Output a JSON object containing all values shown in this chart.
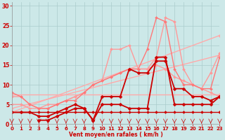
{
  "xlabel": "Vent moyen/en rafales ( km/h )",
  "background_color": "#cce8e8",
  "grid_color": "#aacccc",
  "xlim": [
    0,
    23
  ],
  "ylim": [
    0,
    31
  ],
  "series": [
    {
      "x": [
        0,
        1,
        2,
        3,
        4,
        5,
        6,
        7,
        8,
        9,
        10,
        11,
        12,
        13,
        14,
        15,
        16,
        17,
        18,
        19,
        20,
        21,
        22,
        23
      ],
      "y": [
        3,
        3,
        3,
        3,
        3,
        3,
        3,
        3,
        3,
        3,
        3,
        3,
        3,
        3,
        3,
        3,
        3,
        3,
        3,
        3,
        3,
        3,
        3,
        3
      ],
      "color": "#cc0000",
      "lw": 1.0,
      "marker": "D",
      "ms": 2.0
    },
    {
      "x": [
        0,
        23
      ],
      "y": [
        7.5,
        7.5
      ],
      "color": "#ffaaaa",
      "lw": 1.0,
      "marker": "D",
      "ms": 2.0
    },
    {
      "x": [
        0,
        23
      ],
      "y": [
        4.0,
        17.5
      ],
      "color": "#ffaaaa",
      "lw": 1.0,
      "marker": "D",
      "ms": 2.0
    },
    {
      "x": [
        0,
        23
      ],
      "y": [
        3.0,
        22.5
      ],
      "color": "#ffaaaa",
      "lw": 1.0,
      "marker": "D",
      "ms": 2.0
    },
    {
      "x": [
        0,
        1,
        2,
        3,
        4,
        5,
        6,
        7,
        8,
        9,
        10,
        11,
        12,
        13,
        14,
        15,
        16,
        17,
        18,
        19,
        20,
        21,
        22,
        23
      ],
      "y": [
        5,
        5,
        4,
        4,
        5,
        5,
        6,
        7,
        8,
        10,
        11,
        12,
        13,
        14,
        14,
        14,
        15,
        14,
        12,
        11,
        10,
        9,
        8,
        7
      ],
      "color": "#ff9999",
      "lw": 1.0,
      "marker": "D",
      "ms": 2.0
    },
    {
      "x": [
        0,
        1,
        2,
        3,
        4,
        5,
        6,
        7,
        8,
        9,
        10,
        11,
        12,
        13,
        14,
        15,
        16,
        17,
        18,
        19,
        20,
        21,
        22,
        23
      ],
      "y": [
        7,
        7,
        5,
        4,
        4,
        5,
        6,
        7,
        8,
        10,
        11,
        19,
        19,
        20,
        14,
        14,
        17,
        27,
        26,
        14,
        10,
        9,
        13,
        18
      ],
      "color": "#ff9999",
      "lw": 1.0,
      "marker": "D",
      "ms": 2.0
    },
    {
      "x": [
        0,
        1,
        2,
        3,
        4,
        5,
        6,
        7,
        8,
        9,
        10,
        11,
        12,
        13,
        14,
        15,
        16,
        17,
        18,
        19,
        20,
        21,
        22,
        23
      ],
      "y": [
        8,
        7,
        5,
        4,
        4,
        5,
        6,
        6,
        8,
        10,
        11,
        12,
        13,
        14,
        14,
        19,
        27,
        26,
        14,
        10,
        10,
        9,
        9,
        17
      ],
      "color": "#ff7777",
      "lw": 1.0,
      "marker": "D",
      "ms": 2.0
    },
    {
      "x": [
        0,
        1,
        2,
        3,
        4,
        5,
        6,
        7,
        8,
        9,
        10,
        11,
        12,
        13,
        14,
        15,
        16,
        17,
        18,
        19,
        20,
        21,
        22,
        23
      ],
      "y": [
        3,
        3,
        3,
        2,
        2,
        3,
        4,
        5,
        4,
        1,
        7,
        7,
        7,
        14,
        13,
        13,
        16,
        16,
        9,
        9,
        7,
        7,
        6,
        7
      ],
      "color": "#cc0000",
      "lw": 1.3,
      "marker": "D",
      "ms": 2.5
    },
    {
      "x": [
        3,
        4,
        5,
        6,
        7,
        8,
        9,
        10,
        11,
        12,
        13,
        14,
        15,
        16,
        17,
        18,
        19,
        20,
        21,
        22,
        23
      ],
      "y": [
        1,
        1,
        2,
        3,
        4,
        4,
        1,
        5,
        5,
        5,
        4,
        4,
        4,
        17,
        17,
        5,
        5,
        5,
        5,
        5,
        7
      ],
      "color": "#cc0000",
      "lw": 1.3,
      "marker": "D",
      "ms": 2.5
    }
  ],
  "yticks": [
    0,
    5,
    10,
    15,
    20,
    25,
    30
  ],
  "xticks": [
    0,
    1,
    2,
    3,
    4,
    5,
    6,
    7,
    8,
    9,
    10,
    11,
    12,
    13,
    14,
    15,
    16,
    17,
    18,
    19,
    20,
    21,
    22,
    23
  ]
}
